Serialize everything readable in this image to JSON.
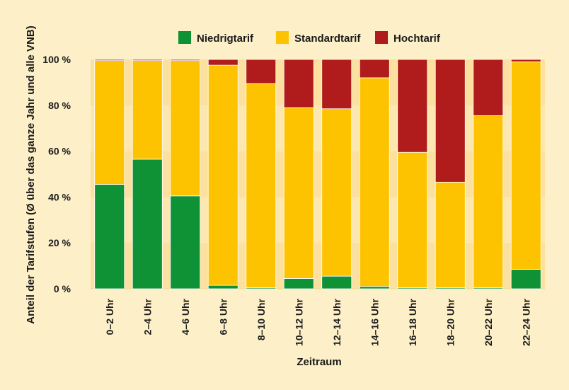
{
  "chart_data": {
    "type": "bar",
    "stacked": true,
    "categories": [
      "0–2 Uhr",
      "2–4 Uhr",
      "4–6 Uhr",
      "6–8 Uhr",
      "8–10 Uhr",
      "10–12 Uhr",
      "12–14 Uhr",
      "14–16 Uhr",
      "16–18 Uhr",
      "18–20 Uhr",
      "20–22 Uhr",
      "22–24 Uhr"
    ],
    "series": [
      {
        "name": "Niedrigtarif",
        "color": "#0f9136",
        "values": [
          45.5,
          56.5,
          40.5,
          1.5,
          0.5,
          4.5,
          5.5,
          1.0,
          0.5,
          0.5,
          0.5,
          8.5
        ]
      },
      {
        "name": "Standardtarif",
        "color": "#fec300",
        "values": [
          54.0,
          43.0,
          59.0,
          96.0,
          89.0,
          74.5,
          73.0,
          91.0,
          59.0,
          46.0,
          75.0,
          90.5
        ]
      },
      {
        "name": "Hochtarif",
        "color": "#b01c1b",
        "values": [
          0.5,
          0.5,
          0.5,
          2.5,
          10.5,
          21.0,
          21.5,
          8.0,
          40.5,
          53.5,
          24.5,
          1.0
        ]
      }
    ],
    "xlabel": "Zeitraum",
    "ylabel": "Anteil der Tarifstufen (Ø über das ganze Jahr und alle VNB)",
    "ylim": [
      0,
      100
    ],
    "yticks": [
      0,
      20,
      40,
      60,
      80,
      100
    ],
    "ytick_labels": [
      "0 %",
      "20 %",
      "40 %",
      "60 %",
      "80 %",
      "100 %"
    ],
    "grid": true,
    "legend_position": "top"
  },
  "colors": {
    "page_background": "#fdf0c8",
    "grid_band": "#fbe0a0"
  }
}
